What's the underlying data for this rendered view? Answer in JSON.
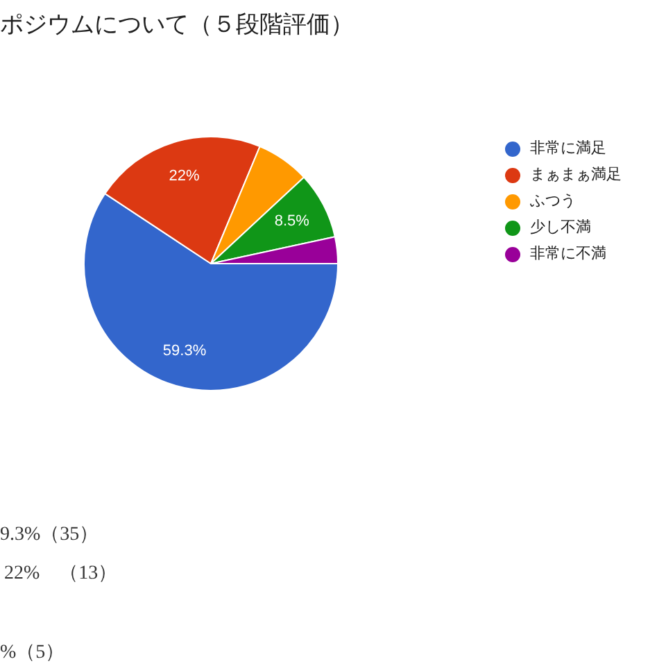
{
  "chart_data": {
    "type": "pie",
    "title": "ポジウムについて（５段階評価）",
    "categories": [
      "非常に満足",
      "まぁまぁ満足",
      "ふつう",
      "少し不満",
      "非常に不満"
    ],
    "values": [
      59.3,
      22,
      6.8,
      8.5,
      3.4
    ],
    "colors": [
      "#3366cc",
      "#dc3912",
      "#ff9900",
      "#109618",
      "#990099"
    ],
    "value_labels": [
      "59.3%",
      "22%",
      null,
      "8.5%",
      null
    ],
    "legend": "right",
    "annotations": [
      "9.3%（35）",
      "22%　（13）",
      "%（5）"
    ]
  }
}
